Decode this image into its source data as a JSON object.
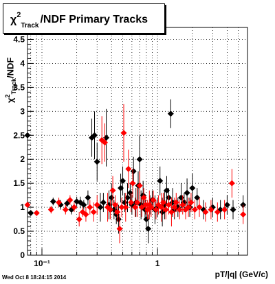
{
  "title": {
    "chi": "χ",
    "sup": "2",
    "sub": "Track",
    "rest": "/NDF  Primary Tracks"
  },
  "ylabel": {
    "chi": "χ",
    "sup": "2",
    "sub": "Track",
    "rest": "/NDF"
  },
  "timestamp": "Wed Oct  8 18:24:15 2014",
  "chart_data": {
    "type": "scatter",
    "title": "χ²_Track/NDF  Primary Tracks",
    "xlabel": "pT/|q| (GeV/c)",
    "ylabel": "χ²_Track/NDF",
    "xscale": "log",
    "xlim": [
      0.075,
      6.0
    ],
    "ylim": [
      0,
      4.75
    ],
    "grid": true,
    "y_tick_labels": [
      "0",
      "0.5",
      "1",
      "1.5",
      "2",
      "2.5",
      "3",
      "3.5",
      "4",
      "4.5"
    ],
    "y_ticks": [
      0,
      0.5,
      1,
      1.5,
      2,
      2.5,
      3,
      3.5,
      4,
      4.5
    ],
    "x_tick_labels": [
      "10⁻¹",
      "1"
    ],
    "x_ticks": [
      0.1,
      1
    ],
    "series": [
      {
        "color": "#000000",
        "points": [
          [
            0.075,
            2.5,
            0.0
          ],
          [
            0.08,
            0.88,
            0.0
          ],
          [
            0.125,
            1.12,
            0.08
          ],
          [
            0.145,
            1.05,
            0.1
          ],
          [
            0.165,
            1.08,
            0.08
          ],
          [
            0.18,
            0.95,
            0.1
          ],
          [
            0.2,
            1.12,
            0.1
          ],
          [
            0.215,
            1.1,
            0.12
          ],
          [
            0.23,
            1.05,
            0.1
          ],
          [
            0.25,
            1.2,
            0.15
          ],
          [
            0.27,
            2.45,
            0.4
          ],
          [
            0.285,
            2.5,
            0.5
          ],
          [
            0.3,
            1.95,
            0.4
          ],
          [
            0.32,
            1.0,
            0.3
          ],
          [
            0.34,
            1.1,
            0.2
          ],
          [
            0.36,
            2.45,
            0.6
          ],
          [
            0.38,
            1.05,
            0.3
          ],
          [
            0.4,
            1.2,
            0.3
          ],
          [
            0.42,
            0.95,
            0.2
          ],
          [
            0.44,
            0.85,
            0.2
          ],
          [
            0.46,
            0.75,
            0.3
          ],
          [
            0.48,
            1.4,
            0.3
          ],
          [
            0.5,
            1.55,
            0.3
          ],
          [
            0.52,
            1.1,
            0.2
          ],
          [
            0.55,
            1.2,
            0.3
          ],
          [
            0.58,
            1.3,
            0.2
          ],
          [
            0.6,
            1.05,
            0.2
          ],
          [
            0.62,
            1.75,
            0.3
          ],
          [
            0.65,
            1.1,
            0.3
          ],
          [
            0.68,
            1.45,
            0.3
          ],
          [
            0.7,
            2.0,
            0.5
          ],
          [
            0.72,
            1.05,
            0.3
          ],
          [
            0.75,
            1.25,
            0.3
          ],
          [
            0.78,
            0.95,
            0.2
          ],
          [
            0.8,
            0.75,
            0.2
          ],
          [
            0.83,
            0.55,
            0.3
          ],
          [
            0.86,
            1.05,
            0.2
          ],
          [
            0.9,
            1.15,
            0.2
          ],
          [
            0.95,
            0.95,
            0.3
          ],
          [
            1.0,
            1.0,
            0.2
          ],
          [
            1.05,
            1.55,
            0.3
          ],
          [
            1.1,
            0.9,
            0.3
          ],
          [
            1.15,
            1.05,
            0.3
          ],
          [
            1.2,
            1.35,
            0.3
          ],
          [
            1.25,
            1.2,
            0.2
          ],
          [
            1.3,
            2.95,
            0.3
          ],
          [
            1.35,
            1.1,
            0.3
          ],
          [
            1.4,
            0.95,
            0.2
          ],
          [
            1.5,
            1.0,
            0.2
          ],
          [
            1.6,
            1.2,
            0.3
          ],
          [
            1.7,
            1.1,
            0.2
          ],
          [
            1.8,
            1.3,
            0.3
          ],
          [
            1.9,
            1.0,
            0.2
          ],
          [
            2.0,
            1.4,
            0.3
          ],
          [
            2.2,
            1.2,
            0.2
          ],
          [
            2.5,
            0.95,
            0.2
          ],
          [
            3.0,
            1.0,
            0.2
          ],
          [
            3.5,
            0.95,
            0.2
          ],
          [
            4.0,
            1.05,
            0.2
          ],
          [
            4.5,
            0.95,
            0.2
          ],
          [
            5.5,
            1.05,
            0.2
          ]
        ]
      },
      {
        "color": "#ff0000",
        "points": [
          [
            0.075,
            1.05,
            0.0
          ],
          [
            0.09,
            0.88,
            0.0
          ],
          [
            0.12,
            0.95,
            0.08
          ],
          [
            0.14,
            1.1,
            0.1
          ],
          [
            0.16,
            0.95,
            0.1
          ],
          [
            0.175,
            1.15,
            0.1
          ],
          [
            0.19,
            1.0,
            0.1
          ],
          [
            0.21,
            0.75,
            0.15
          ],
          [
            0.225,
            0.9,
            0.1
          ],
          [
            0.24,
            0.85,
            0.15
          ],
          [
            0.26,
            1.0,
            0.15
          ],
          [
            0.28,
            0.9,
            0.2
          ],
          [
            0.3,
            1.05,
            0.2
          ],
          [
            0.33,
            2.4,
            0.5
          ],
          [
            0.35,
            2.35,
            0.4
          ],
          [
            0.37,
            1.0,
            0.3
          ],
          [
            0.39,
            0.95,
            0.2
          ],
          [
            0.41,
            1.35,
            0.3
          ],
          [
            0.43,
            1.05,
            0.2
          ],
          [
            0.45,
            0.9,
            0.2
          ],
          [
            0.47,
            0.55,
            0.3
          ],
          [
            0.49,
            1.0,
            0.2
          ],
          [
            0.51,
            2.55,
            0.6
          ],
          [
            0.53,
            1.0,
            0.3
          ],
          [
            0.56,
            1.8,
            0.4
          ],
          [
            0.59,
            1.1,
            0.2
          ],
          [
            0.61,
            1.5,
            0.3
          ],
          [
            0.64,
            1.0,
            0.2
          ],
          [
            0.67,
            1.1,
            0.3
          ],
          [
            0.7,
            1.45,
            0.3
          ],
          [
            0.73,
            1.0,
            0.2
          ],
          [
            0.76,
            1.2,
            0.2
          ],
          [
            0.79,
            1.05,
            0.2
          ],
          [
            0.82,
            0.95,
            0.2
          ],
          [
            0.85,
            1.05,
            0.3
          ],
          [
            0.88,
            1.0,
            0.2
          ],
          [
            0.92,
            1.15,
            0.2
          ],
          [
            0.97,
            0.95,
            0.2
          ],
          [
            1.02,
            1.05,
            0.2
          ],
          [
            1.08,
            1.0,
            0.3
          ],
          [
            1.12,
            1.1,
            0.2
          ],
          [
            1.18,
            0.95,
            0.2
          ],
          [
            1.25,
            1.05,
            0.2
          ],
          [
            1.32,
            0.9,
            0.3
          ],
          [
            1.4,
            1.0,
            0.2
          ],
          [
            1.45,
            1.1,
            0.2
          ],
          [
            1.55,
            0.95,
            0.2
          ],
          [
            1.65,
            1.05,
            0.2
          ],
          [
            1.75,
            0.95,
            0.2
          ],
          [
            1.85,
            1.0,
            0.2
          ],
          [
            1.95,
            1.1,
            0.2
          ],
          [
            2.1,
            0.95,
            0.2
          ],
          [
            2.3,
            1.0,
            0.2
          ],
          [
            2.6,
            0.9,
            0.2
          ],
          [
            2.9,
            0.95,
            0.2
          ],
          [
            3.3,
            0.9,
            0.2
          ],
          [
            3.8,
            0.95,
            0.2
          ],
          [
            4.4,
            1.5,
            0.3
          ],
          [
            5.5,
            0.85,
            0.2
          ]
        ]
      }
    ]
  }
}
